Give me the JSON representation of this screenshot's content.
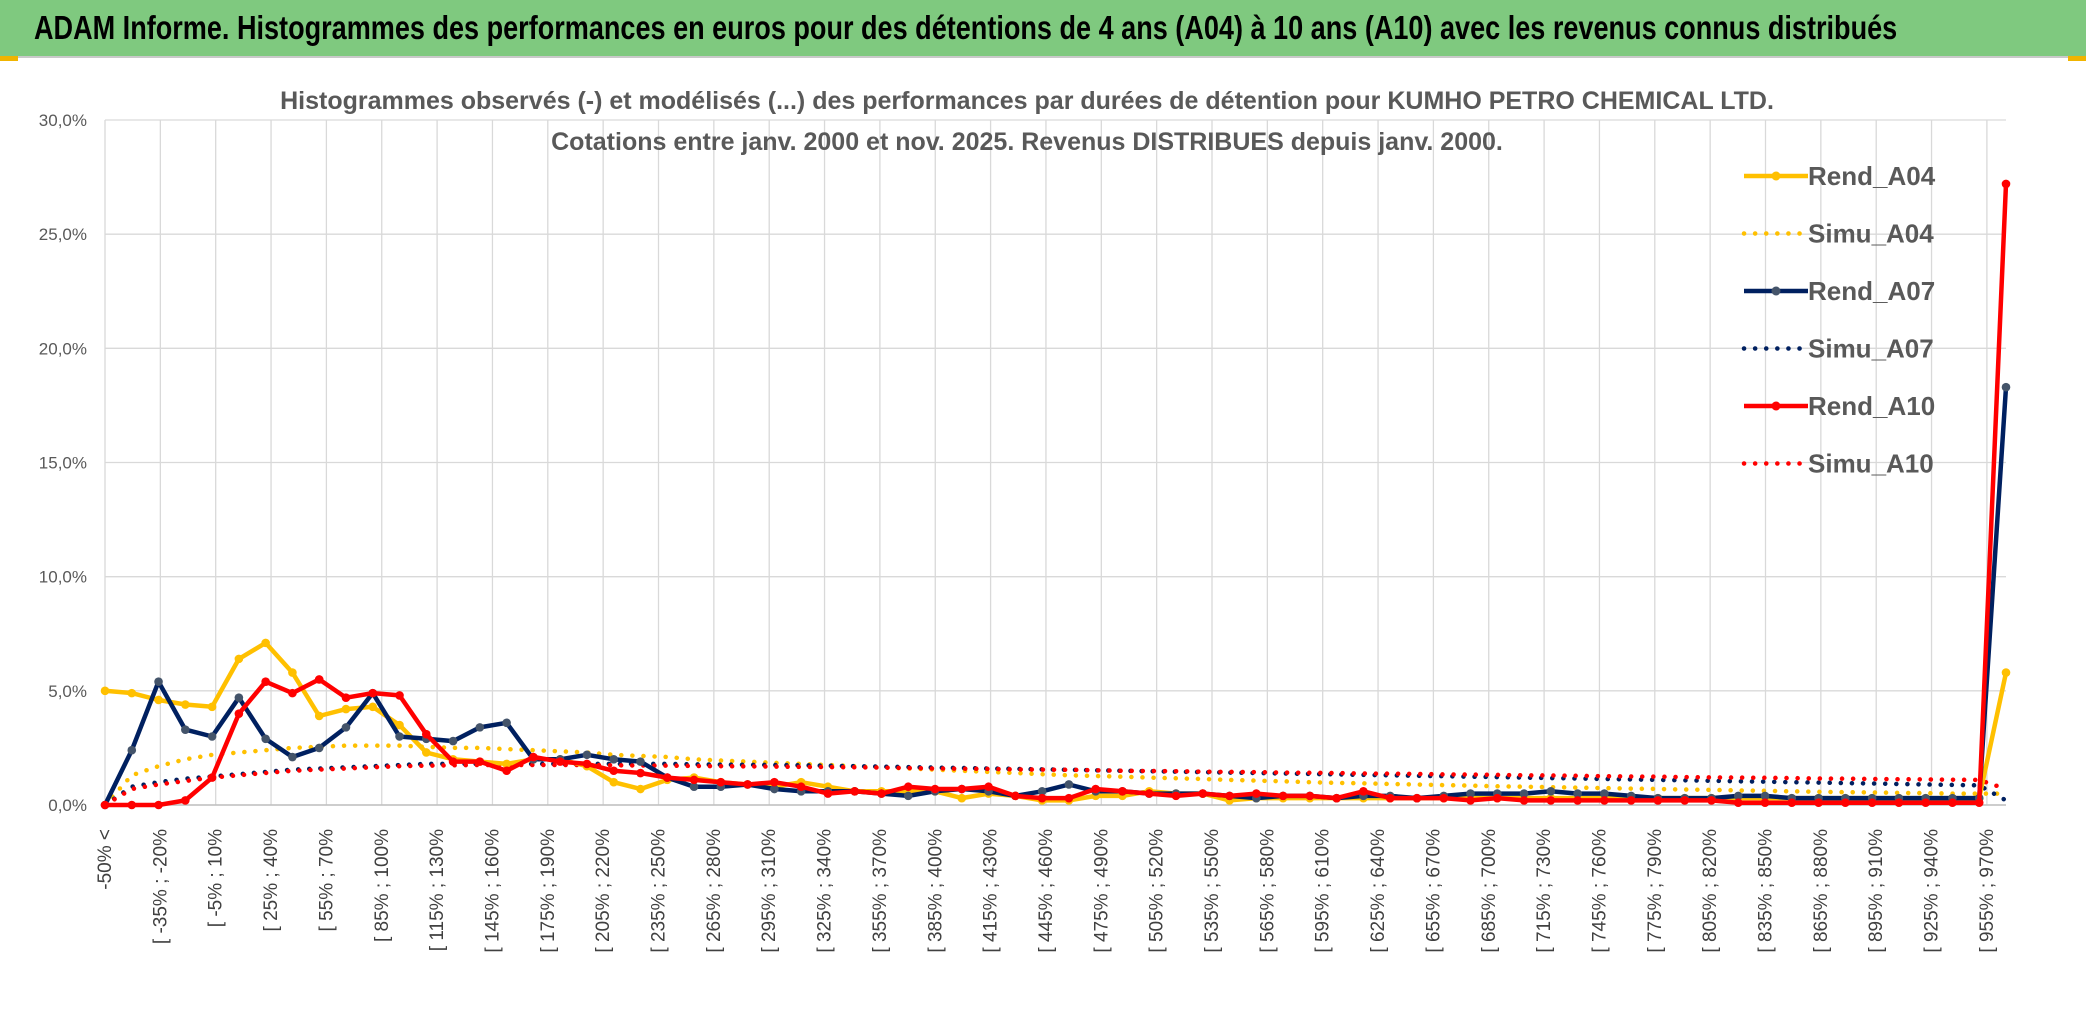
{
  "header": {
    "title": "ADAM Informe. Histogrammes des performances en euros pour des détentions de 4 ans (A04) à 10 ans (A10) avec les revenus connus distribués"
  },
  "chart_data": {
    "type": "line",
    "title_line1": "Histogrammes observés (-) et modélisés (...) des performances par durées de détention pour KUMHO PETRO CHEMICAL LTD.",
    "title_line2": "Cotations entre janv. 2000 et nov. 2025. Revenus DISTRIBUES depuis janv. 2000.",
    "ylim": [
      0,
      30
    ],
    "y_ticks": [
      "0,0%",
      "5,0%",
      "10,0%",
      "15,0%",
      "20,0%",
      "25,0%",
      "30,0%"
    ],
    "x_labels": [
      "-50% <",
      "[ -35% ; -20%",
      "[ -5% ; 10%",
      "[ 25% ; 40%",
      "[ 55% ; 70%",
      "[ 85% ; 100%",
      "[ 115% ; 130%",
      "[ 145% ; 160%",
      "[ 175% ; 190%",
      "[ 205% ; 220%",
      "[ 235% ; 250%",
      "[ 265% ; 280%",
      "[ 295% ; 310%",
      "[ 325% ; 340%",
      "[ 355% ; 370%",
      "[ 385% ; 400%",
      "[ 415% ; 430%",
      "[ 445% ; 460%",
      "[ 475% ; 490%",
      "[ 505% ; 520%",
      "[ 535% ; 550%",
      "[ 565% ; 580%",
      "[ 595% ; 610%",
      "[ 625% ; 640%",
      "[ 655% ; 670%",
      "[ 685% ; 700%",
      "[ 715% ; 730%",
      "[ 745% ; 760%",
      "[ 775% ; 790%",
      "[ 805% ; 820%",
      "[ 835% ; 850%",
      "[ 865% ; 880%",
      "[ 895% ; 910%",
      "[ 925% ; 940%",
      "[ 955% ; 970%"
    ],
    "series": [
      {
        "name": "Rend_A04",
        "style": "solid",
        "color": "#ffc000",
        "values": [
          5.0,
          4.9,
          4.6,
          4.4,
          4.3,
          6.4,
          7.1,
          5.8,
          3.9,
          4.2,
          4.3,
          3.5,
          2.3,
          2.0,
          1.9,
          1.8,
          2.0,
          2.0,
          1.7,
          1.0,
          0.7,
          1.1,
          1.2,
          1.0,
          0.9,
          0.8,
          1.0,
          0.8,
          0.6,
          0.6,
          0.6,
          0.6,
          0.3,
          0.5,
          0.4,
          0.2,
          0.2,
          0.4,
          0.4,
          0.6,
          0.5,
          0.5,
          0.2,
          0.3,
          0.3,
          0.3,
          0.3,
          0.3,
          0.3,
          0.3,
          0.3,
          0.3,
          0.3,
          0.3,
          0.3,
          0.3,
          0.3,
          0.3,
          0.3,
          0.3,
          0.3,
          0.3,
          0.3,
          0.3,
          0.3,
          0.3,
          0.3,
          0.3,
          0.3,
          0.3,
          0.3,
          5.8
        ]
      },
      {
        "name": "Simu_A04",
        "style": "dotted",
        "color": "#ffc000",
        "values": [
          0.0,
          1.3,
          1.7,
          2.0,
          2.2,
          2.3,
          2.4,
          2.5,
          2.55,
          2.6,
          2.6,
          2.6,
          2.55,
          2.5,
          2.5,
          2.45,
          2.4,
          2.35,
          2.3,
          2.2,
          2.15,
          2.1,
          2.0,
          1.95,
          1.9,
          1.85,
          1.8,
          1.75,
          1.7,
          1.65,
          1.6,
          1.55,
          1.5,
          1.45,
          1.4,
          1.35,
          1.3,
          1.27,
          1.24,
          1.2,
          1.17,
          1.14,
          1.1,
          1.07,
          1.04,
          1.0,
          0.97,
          0.95,
          0.92,
          0.9,
          0.87,
          0.85,
          0.82,
          0.8,
          0.78,
          0.76,
          0.74,
          0.72,
          0.7,
          0.68,
          0.66,
          0.64,
          0.62,
          0.6,
          0.58,
          0.56,
          0.55,
          0.53,
          0.52,
          0.5,
          0.5,
          0.5
        ]
      },
      {
        "name": "Rend_A07",
        "style": "solid",
        "color": "#002060",
        "values": [
          0.0,
          2.4,
          5.4,
          3.3,
          3.0,
          4.7,
          2.9,
          2.1,
          2.5,
          3.4,
          4.9,
          3.0,
          2.9,
          2.8,
          3.4,
          3.6,
          2.0,
          2.0,
          2.2,
          2.0,
          1.9,
          1.2,
          0.8,
          0.8,
          0.9,
          0.7,
          0.6,
          0.6,
          0.6,
          0.5,
          0.4,
          0.6,
          0.7,
          0.6,
          0.4,
          0.6,
          0.9,
          0.6,
          0.6,
          0.5,
          0.5,
          0.5,
          0.4,
          0.3,
          0.4,
          0.4,
          0.3,
          0.4,
          0.4,
          0.3,
          0.4,
          0.5,
          0.5,
          0.5,
          0.6,
          0.5,
          0.5,
          0.4,
          0.3,
          0.3,
          0.3,
          0.4,
          0.4,
          0.3,
          0.3,
          0.3,
          0.3,
          0.3,
          0.3,
          0.3,
          0.3,
          18.3
        ]
      },
      {
        "name": "Simu_A07",
        "style": "dotted",
        "color": "#002060",
        "values": [
          0.0,
          0.8,
          1.0,
          1.15,
          1.25,
          1.35,
          1.45,
          1.55,
          1.6,
          1.65,
          1.7,
          1.75,
          1.8,
          1.8,
          1.8,
          1.8,
          1.8,
          1.8,
          1.8,
          1.8,
          1.8,
          1.8,
          1.78,
          1.77,
          1.76,
          1.75,
          1.74,
          1.72,
          1.7,
          1.68,
          1.66,
          1.64,
          1.62,
          1.6,
          1.58,
          1.56,
          1.54,
          1.52,
          1.5,
          1.48,
          1.46,
          1.44,
          1.42,
          1.4,
          1.38,
          1.36,
          1.34,
          1.32,
          1.3,
          1.28,
          1.26,
          1.24,
          1.22,
          1.2,
          1.18,
          1.16,
          1.14,
          1.12,
          1.1,
          1.08,
          1.06,
          1.04,
          1.02,
          1.0,
          0.98,
          0.96,
          0.94,
          0.92,
          0.9,
          0.88,
          0.86,
          0.2
        ]
      },
      {
        "name": "Rend_A10",
        "style": "solid",
        "color": "#ff0000",
        "values": [
          0.0,
          0.0,
          0.0,
          0.2,
          1.2,
          4.0,
          5.4,
          4.9,
          5.5,
          4.7,
          4.9,
          4.8,
          3.1,
          1.9,
          1.9,
          1.5,
          2.1,
          1.9,
          1.8,
          1.5,
          1.4,
          1.2,
          1.1,
          1.0,
          0.9,
          1.0,
          0.8,
          0.5,
          0.6,
          0.5,
          0.8,
          0.7,
          0.7,
          0.8,
          0.4,
          0.3,
          0.3,
          0.7,
          0.6,
          0.5,
          0.4,
          0.5,
          0.4,
          0.5,
          0.4,
          0.4,
          0.3,
          0.6,
          0.3,
          0.3,
          0.3,
          0.2,
          0.3,
          0.2,
          0.2,
          0.2,
          0.2,
          0.2,
          0.2,
          0.2,
          0.2,
          0.1,
          0.1,
          0.1,
          0.1,
          0.1,
          0.1,
          0.1,
          0.1,
          0.1,
          0.1,
          27.2
        ]
      },
      {
        "name": "Simu_A10",
        "style": "dotted",
        "color": "#ff0000",
        "values": [
          0.0,
          0.7,
          0.9,
          1.05,
          1.2,
          1.3,
          1.4,
          1.5,
          1.55,
          1.6,
          1.65,
          1.7,
          1.72,
          1.74,
          1.75,
          1.75,
          1.75,
          1.75,
          1.75,
          1.74,
          1.73,
          1.72,
          1.71,
          1.7,
          1.69,
          1.68,
          1.67,
          1.66,
          1.65,
          1.64,
          1.62,
          1.6,
          1.59,
          1.58,
          1.56,
          1.55,
          1.54,
          1.52,
          1.5,
          1.49,
          1.48,
          1.46,
          1.45,
          1.44,
          1.42,
          1.41,
          1.4,
          1.38,
          1.37,
          1.36,
          1.34,
          1.33,
          1.32,
          1.3,
          1.29,
          1.28,
          1.26,
          1.25,
          1.24,
          1.22,
          1.21,
          1.2,
          1.19,
          1.18,
          1.16,
          1.15,
          1.14,
          1.13,
          1.12,
          1.11,
          1.1,
          0.7
        ]
      }
    ]
  }
}
